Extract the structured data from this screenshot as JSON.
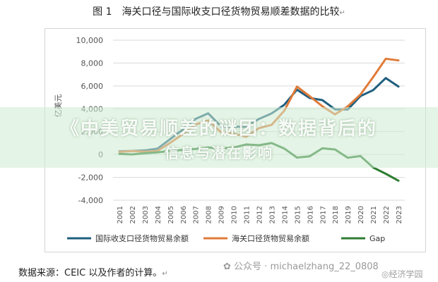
{
  "figure": {
    "number": "图 1",
    "title": "海关口径与国际收支口径货物贸易顺差数据的比较",
    "source": "数据来源：CEIC 以及作者的计算。",
    "return_mark": "↵"
  },
  "banner": {
    "line1": "《中美贸易顺差的谜团：数据背后的",
    "line2": "信息与潜在影响"
  },
  "watermark": {
    "text": "公众号 · michaelzhang_22_0808",
    "brand": "经济学园"
  },
  "chart_data": {
    "type": "line",
    "ylabel": "亿美元",
    "ylim": [
      -4000,
      10000
    ],
    "yticks": [
      -4000,
      -2000,
      0,
      2000,
      4000,
      6000,
      8000,
      10000
    ],
    "ytick_labels": [
      "-4,000",
      "-2,000",
      "0",
      "2,000",
      "4,000",
      "6,000",
      "8,000",
      "10,000"
    ],
    "x": [
      "2001",
      "2002",
      "2003",
      "2004",
      "2005",
      "2006",
      "2007",
      "2008",
      "2009",
      "2010",
      "2011",
      "2012",
      "2013",
      "2014",
      "2015",
      "2016",
      "2017",
      "2018",
      "2019",
      "2020",
      "2021",
      "2022",
      "2023"
    ],
    "grid": true,
    "legend_position": "bottom",
    "series": [
      {
        "name": "国际收支口径货物贸易余额",
        "color": "#1f5f7f",
        "values": [
          280,
          310,
          360,
          510,
          1340,
          2180,
          3110,
          3600,
          2490,
          2430,
          2430,
          3110,
          3590,
          4350,
          5670,
          4940,
          4760,
          3950,
          3930,
          5110,
          5630,
          6690,
          5940
        ]
      },
      {
        "name": "海关口径货物贸易余额",
        "color": "#e07b39",
        "values": [
          230,
          300,
          250,
          320,
          1020,
          1780,
          2620,
          2980,
          1960,
          1820,
          1550,
          2300,
          2590,
          3830,
          5940,
          5100,
          4220,
          3510,
          4210,
          5240,
          6760,
          8380,
          8230
        ]
      },
      {
        "name": "Gap",
        "color": "#2e7d32",
        "values": [
          50,
          10,
          110,
          190,
          320,
          400,
          490,
          620,
          530,
          610,
          880,
          810,
          1000,
          520,
          -270,
          -160,
          540,
          440,
          -280,
          -130,
          -1130,
          -1690,
          -2290
        ]
      }
    ]
  }
}
